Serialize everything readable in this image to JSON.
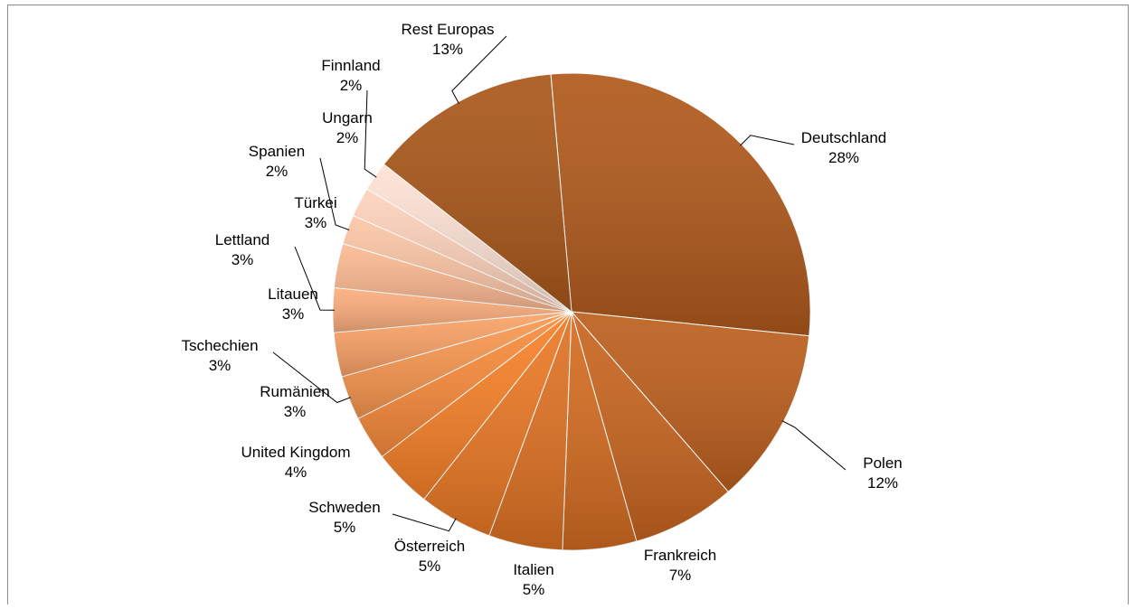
{
  "chart_data": {
    "type": "pie",
    "title": "",
    "start_angle_deg": -5,
    "direction": "clockwise",
    "legend": "none",
    "slices": [
      {
        "label": "Deutschland",
        "value": 28,
        "display": "28%",
        "color": "#b0591b"
      },
      {
        "label": "Polen",
        "value": 12,
        "display": "12%",
        "color": "#bc5f1d"
      },
      {
        "label": "Frankreich",
        "value": 7,
        "display": "7%",
        "color": "#c8651f"
      },
      {
        "label": "Italien",
        "value": 5,
        "display": "5%",
        "color": "#d46c21"
      },
      {
        "label": "Österreich",
        "value": 5,
        "display": "5%",
        "color": "#df7223"
      },
      {
        "label": "Schweden",
        "value": 5,
        "display": "5%",
        "color": "#eb7925"
      },
      {
        "label": "United Kingdom",
        "value": 4,
        "display": "4%",
        "color": "#f78128"
      },
      {
        "label": "Rumänien",
        "value": 3,
        "display": "3%",
        "color": "#f98b3b"
      },
      {
        "label": "Tschechien",
        "value": 3,
        "display": "3%",
        "color": "#f9974f"
      },
      {
        "label": "Litauen",
        "value": 3,
        "display": "3%",
        "color": "#faa266"
      },
      {
        "label": "Lettland",
        "value": 3,
        "display": "3%",
        "color": "#fbad7c"
      },
      {
        "label": "Türkei",
        "value": 3,
        "display": "3%",
        "color": "#fbb991"
      },
      {
        "label": "Spanien",
        "value": 2,
        "display": "2%",
        "color": "#fcc6a6"
      },
      {
        "label": "Ungarn",
        "value": 2,
        "display": "2%",
        "color": "#fdd2bb"
      },
      {
        "label": "Finnland",
        "value": 2,
        "display": "2%",
        "color": "#fde2d4"
      },
      {
        "label": "Rest Europas",
        "value": 13,
        "display": "13%",
        "color": "#a95719"
      }
    ]
  }
}
